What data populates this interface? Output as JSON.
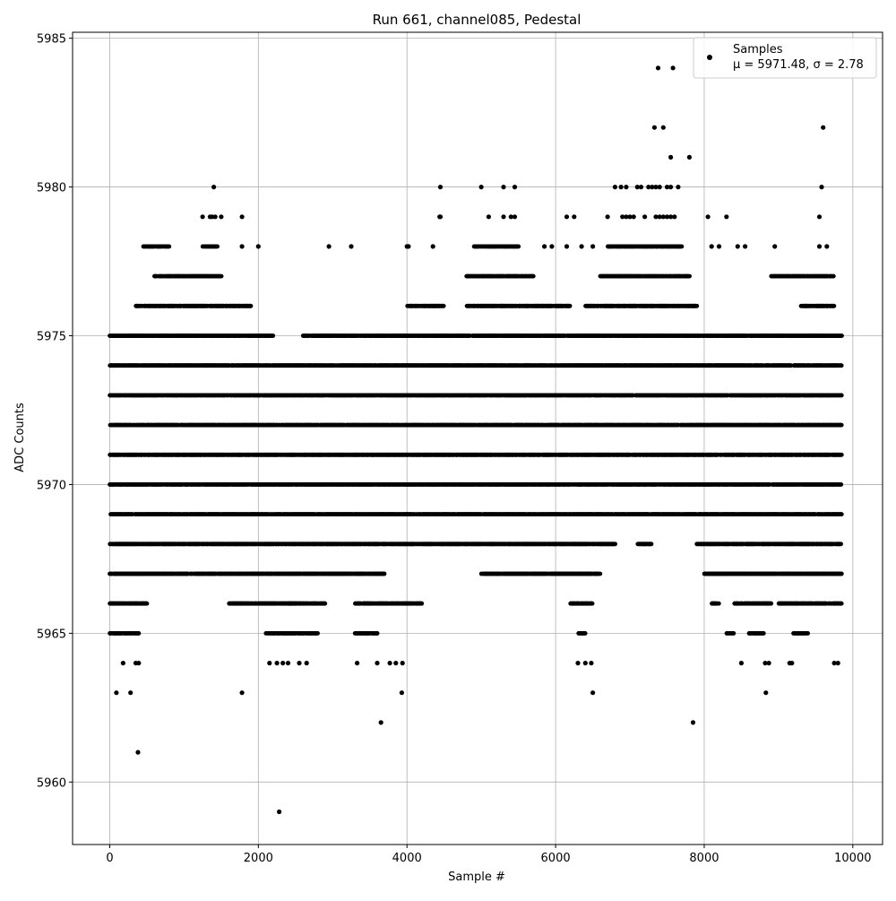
{
  "chart_data": {
    "type": "scatter",
    "title": "Run 661, channel085, Pedestal",
    "xlabel": "Sample #",
    "ylabel": "ADC Counts",
    "xlim": [
      -500,
      10400
    ],
    "ylim": [
      5957.9,
      5985.2
    ],
    "xticks": [
      0,
      2000,
      4000,
      6000,
      8000,
      10000
    ],
    "yticks": [
      5960,
      5965,
      5970,
      5975,
      5980,
      5985
    ],
    "grid": true,
    "legend": {
      "placement": "top-right",
      "label": "Samples",
      "stats": "μ = 5971.48, σ = 2.78"
    },
    "marker_color": "#000000",
    "sample_range": [
      0,
      9850
    ],
    "series": [
      {
        "name": "Samples",
        "levels": [
          {
            "y": 5974,
            "segments": [
              [
                0,
                9850
              ]
            ]
          },
          {
            "y": 5973,
            "segments": [
              [
                0,
                9850
              ]
            ]
          },
          {
            "y": 5972,
            "segments": [
              [
                0,
                9850
              ]
            ]
          },
          {
            "y": 5971,
            "segments": [
              [
                0,
                9850
              ]
            ]
          },
          {
            "y": 5970,
            "segments": [
              [
                0,
                9850
              ]
            ]
          },
          {
            "y": 5969,
            "segments": [
              [
                0,
                9850
              ]
            ]
          },
          {
            "y": 5968,
            "segments": [
              [
                0,
                6800
              ],
              [
                7100,
                7300
              ],
              [
                7900,
                9850
              ]
            ]
          },
          {
            "y": 5967,
            "segments": [
              [
                0,
                3700
              ],
              [
                5000,
                6600
              ],
              [
                8000,
                9850
              ]
            ]
          },
          {
            "y": 5975,
            "segments": [
              [
                0,
                2200
              ],
              [
                2600,
                4000
              ],
              [
                4000,
                9850
              ]
            ]
          },
          {
            "y": 5976,
            "segments": [
              [
                350,
                1900
              ],
              [
                4000,
                4500
              ],
              [
                4800,
                6200
              ],
              [
                6400,
                7900
              ],
              [
                9300,
                9750
              ]
            ]
          },
          {
            "y": 5977,
            "segments": [
              [
                600,
                1500
              ],
              [
                4800,
                5700
              ],
              [
                6600,
                7800
              ],
              [
                8900,
                9750
              ]
            ]
          },
          {
            "y": 5978,
            "segments": [
              [
                450,
                800
              ],
              [
                1250,
                1450
              ],
              [
                4900,
                5500
              ],
              [
                6700,
                7700
              ]
            ]
          },
          {
            "y": 5966,
            "segments": [
              [
                0,
                500
              ],
              [
                1600,
                2500
              ],
              [
                2400,
                2900
              ],
              [
                3300,
                4200
              ],
              [
                6200,
                6500
              ],
              [
                8100,
                8200
              ],
              [
                8400,
                8900
              ],
              [
                9000,
                9850
              ]
            ]
          },
          {
            "y": 5965,
            "segments": [
              [
                0,
                400
              ],
              [
                2100,
                2800
              ],
              [
                3300,
                3600
              ],
              [
                6300,
                6400
              ],
              [
                8300,
                8400
              ],
              [
                8600,
                8800
              ],
              [
                9200,
                9400
              ]
            ]
          }
        ],
        "points": [
          [
            1400,
            5980
          ],
          [
            1350,
            5979
          ],
          [
            1380,
            5979
          ],
          [
            1420,
            5979
          ],
          [
            1250,
            5979
          ],
          [
            1500,
            5979
          ],
          [
            1780,
            5979
          ],
          [
            1780,
            5978
          ],
          [
            2000,
            5978
          ],
          [
            2950,
            5978
          ],
          [
            3250,
            5978
          ],
          [
            4000,
            5978
          ],
          [
            4020,
            5978
          ],
          [
            4350,
            5978
          ],
          [
            5850,
            5978
          ],
          [
            5950,
            5978
          ],
          [
            6150,
            5978
          ],
          [
            6350,
            5978
          ],
          [
            6500,
            5978
          ],
          [
            8100,
            5978
          ],
          [
            8200,
            5978
          ],
          [
            8450,
            5978
          ],
          [
            8550,
            5978
          ],
          [
            8950,
            5978
          ],
          [
            9550,
            5978
          ],
          [
            9650,
            5978
          ],
          [
            4440,
            5979
          ],
          [
            4450,
            5979
          ],
          [
            5100,
            5979
          ],
          [
            5300,
            5979
          ],
          [
            5400,
            5979
          ],
          [
            5450,
            5979
          ],
          [
            6150,
            5979
          ],
          [
            6250,
            5979
          ],
          [
            6700,
            5979
          ],
          [
            6900,
            5979
          ],
          [
            6950,
            5979
          ],
          [
            7000,
            5979
          ],
          [
            7050,
            5979
          ],
          [
            7200,
            5979
          ],
          [
            7350,
            5979
          ],
          [
            7400,
            5979
          ],
          [
            7450,
            5979
          ],
          [
            7500,
            5979
          ],
          [
            7550,
            5979
          ],
          [
            7600,
            5979
          ],
          [
            8050,
            5979
          ],
          [
            8300,
            5979
          ],
          [
            9550,
            5979
          ],
          [
            4450,
            5980
          ],
          [
            5000,
            5980
          ],
          [
            5300,
            5980
          ],
          [
            5450,
            5980
          ],
          [
            6800,
            5980
          ],
          [
            6880,
            5980
          ],
          [
            6950,
            5980
          ],
          [
            7100,
            5980
          ],
          [
            7150,
            5980
          ],
          [
            7250,
            5980
          ],
          [
            7300,
            5980
          ],
          [
            7350,
            5980
          ],
          [
            7400,
            5980
          ],
          [
            7500,
            5980
          ],
          [
            7550,
            5980
          ],
          [
            7650,
            5980
          ],
          [
            9580,
            5980
          ],
          [
            7550,
            5981
          ],
          [
            7800,
            5981
          ],
          [
            7330,
            5982
          ],
          [
            7450,
            5982
          ],
          [
            9600,
            5982
          ],
          [
            7380,
            5984
          ],
          [
            7580,
            5984
          ],
          [
            90,
            5963
          ],
          [
            280,
            5963
          ],
          [
            1780,
            5963
          ],
          [
            3930,
            5963
          ],
          [
            6500,
            5963
          ],
          [
            8830,
            5963
          ],
          [
            180,
            5964
          ],
          [
            350,
            5964
          ],
          [
            390,
            5964
          ],
          [
            2150,
            5964
          ],
          [
            2250,
            5964
          ],
          [
            2330,
            5964
          ],
          [
            2400,
            5964
          ],
          [
            2550,
            5964
          ],
          [
            2650,
            5964
          ],
          [
            3330,
            5964
          ],
          [
            3600,
            5964
          ],
          [
            3770,
            5964
          ],
          [
            3850,
            5964
          ],
          [
            3940,
            5964
          ],
          [
            6300,
            5964
          ],
          [
            6400,
            5964
          ],
          [
            6480,
            5964
          ],
          [
            8500,
            5964
          ],
          [
            8820,
            5964
          ],
          [
            8870,
            5964
          ],
          [
            9150,
            5964
          ],
          [
            9180,
            5964
          ],
          [
            9750,
            5964
          ],
          [
            9800,
            5964
          ],
          [
            3650,
            5962
          ],
          [
            7850,
            5962
          ],
          [
            380,
            5961
          ],
          [
            2280,
            5959
          ]
        ]
      }
    ]
  }
}
